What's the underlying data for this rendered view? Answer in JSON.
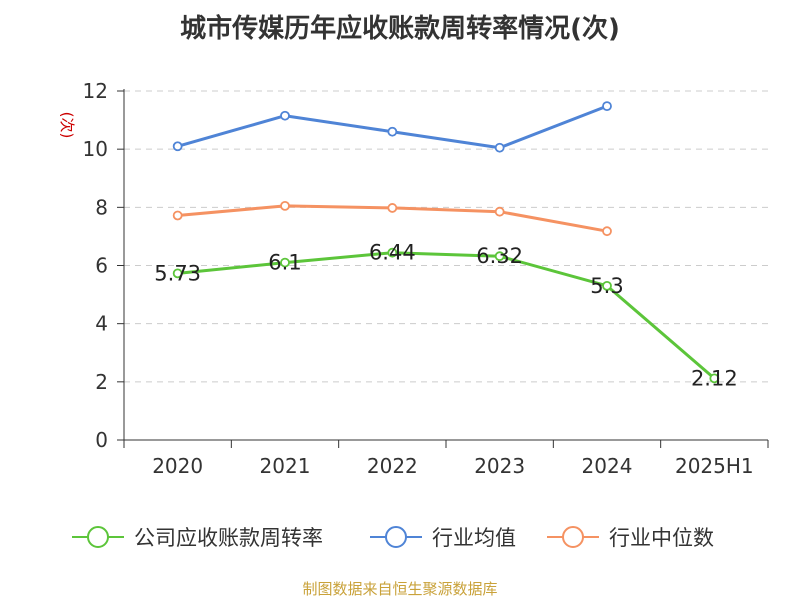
{
  "chart_data": {
    "type": "line",
    "title": "城市传媒历年应收账款周转率情况(次)",
    "ylabel": "(次)",
    "xlabel": "",
    "categories": [
      "2020",
      "2021",
      "2022",
      "2023",
      "2024",
      "2025H1"
    ],
    "ylim": [
      0,
      12
    ],
    "yticks": [
      0,
      2,
      4,
      6,
      8,
      10,
      12
    ],
    "grid": true,
    "legend_position": "bottom",
    "series": [
      {
        "name": "公司应收账款周转率",
        "color": "#5cc53a",
        "values": [
          5.73,
          6.1,
          6.44,
          6.32,
          5.3,
          2.12
        ],
        "labels": [
          "5.73",
          "6.1",
          "6.44",
          "6.32",
          "5.3",
          "2.12"
        ],
        "show_labels": true
      },
      {
        "name": "行业均值",
        "color": "#4f84d6",
        "values": [
          10.1,
          11.15,
          10.6,
          10.05,
          11.48,
          null
        ],
        "show_labels": false
      },
      {
        "name": "行业中位数",
        "color": "#f59262",
        "values": [
          7.72,
          8.05,
          7.98,
          7.85,
          7.18,
          null
        ],
        "show_labels": false
      }
    ]
  },
  "source_note": "制图数据来自恒生聚源数据库",
  "colors": {
    "axis": "#333333",
    "grid": "#cccccc",
    "ylabel": "#cc0000",
    "source_note": "#c9a23a"
  }
}
